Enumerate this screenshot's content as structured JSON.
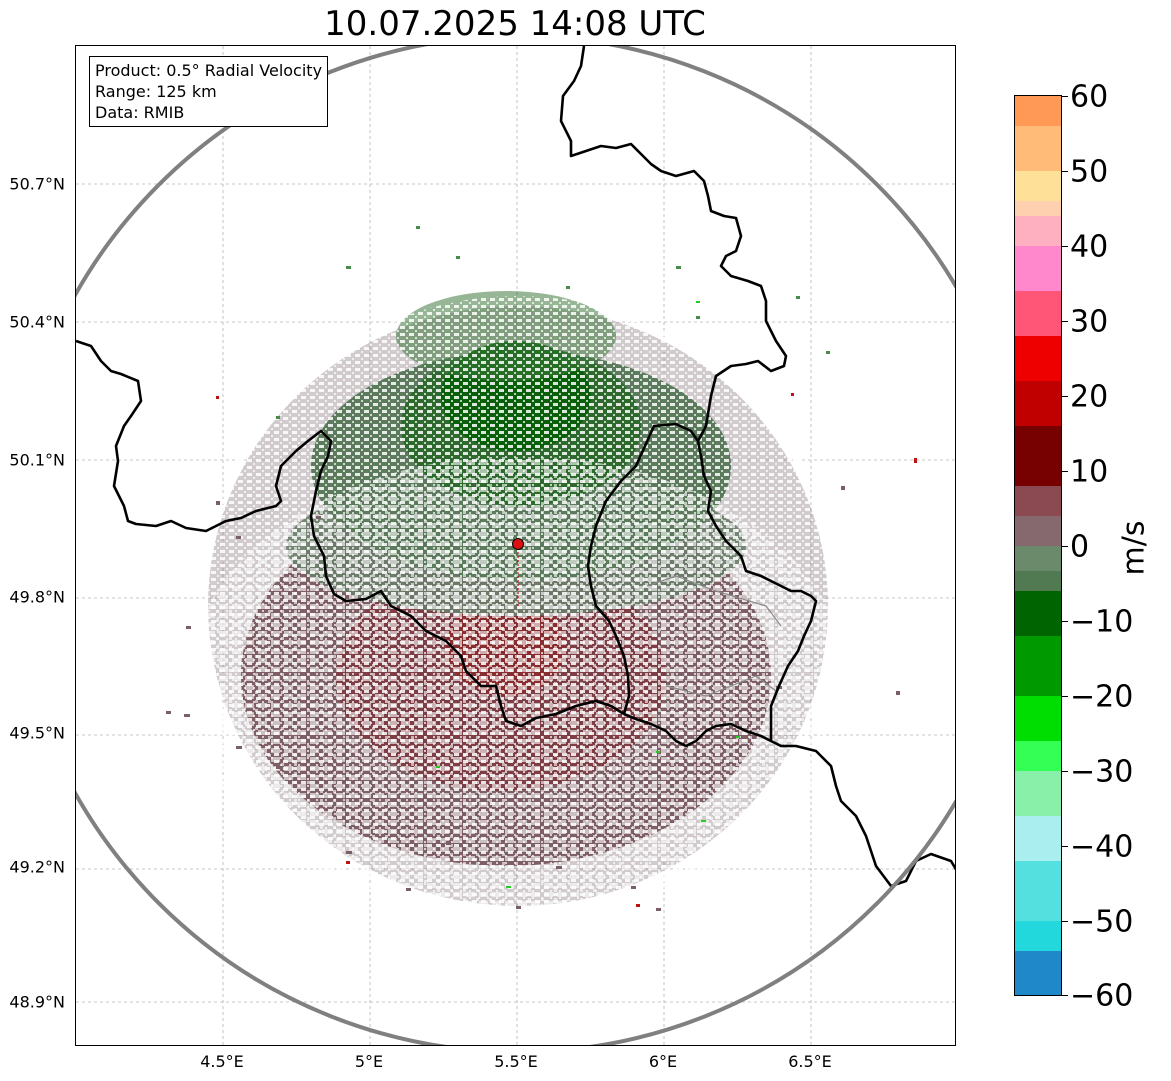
{
  "title": "10.07.2025 14:08 UTC",
  "info": {
    "product": "Product: 0.5° Radial Velocity",
    "range": "Range: 125 km",
    "data": "Data: RMIB"
  },
  "axes": {
    "lat_ticks": [
      "50.7°N",
      "50.4°N",
      "50.1°N",
      "49.8°N",
      "49.5°N",
      "49.2°N",
      "48.9°N"
    ],
    "lon_ticks": [
      "4.5°E",
      "5°E",
      "5.5°E",
      "6°E",
      "6.5°E"
    ]
  },
  "colorbar": {
    "label": "m/s",
    "ticks": [
      "60",
      "50",
      "40",
      "30",
      "20",
      "10",
      "0",
      "−10",
      "−20",
      "−30",
      "−40",
      "−50",
      "−60"
    ],
    "min": -60,
    "max": 60
  },
  "colors": {
    "outbound": "#8b3a3a",
    "inbound": "#006400",
    "near_zero": "#6b8a6b",
    "range_ring": "#808080",
    "border": "#000000",
    "radar_site": "#dd1111"
  }
}
